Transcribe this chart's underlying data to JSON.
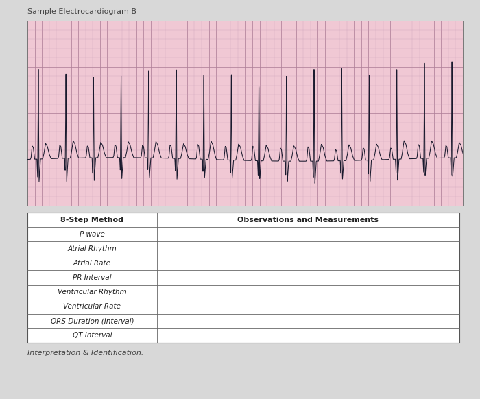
{
  "title": "Sample Electrocardiogram B",
  "bg_color": "#d8d8d8",
  "ecg_bg_color": "#f0c8d4",
  "ecg_grid_minor_color": "#c8a0b8",
  "ecg_grid_major_color": "#b08098",
  "ecg_line_color": "#1a1a2e",
  "table_header_left": "8-Step Method",
  "table_header_right": "Observations and Measurements",
  "table_rows": [
    "P wave",
    "Atrial Rhythm",
    "Atrial Rate",
    "PR Interval",
    "Ventricular Rhythm",
    "Ventricular Rate",
    "QRS Duration (Interval)",
    "QT Interval"
  ],
  "footer_text": "Interpretation & Identification:",
  "title_fontsize": 8,
  "table_header_fontsize": 8,
  "table_row_fontsize": 7.5,
  "footer_fontsize": 8,
  "col_split": 0.3
}
